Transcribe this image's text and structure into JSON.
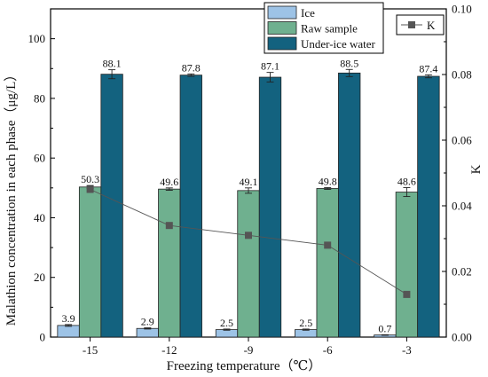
{
  "chart_data": {
    "type": "bar",
    "xlabel": "Freezing temperature（℃）",
    "ylabel": "Malathion concentration in each phase（μg/L）",
    "y2label": "K",
    "categories": [
      "-15",
      "-12",
      "-9",
      "-6",
      "-3"
    ],
    "ylim": [
      0,
      110
    ],
    "yticks": [
      0,
      20,
      40,
      60,
      80,
      100
    ],
    "y2lim": [
      0,
      0.1
    ],
    "y2ticks": [
      "0.00",
      "0.02",
      "0.04",
      "0.06",
      "0.08",
      "0.10"
    ],
    "series": [
      {
        "name": "Ice",
        "color": "#9dc3e6",
        "values": [
          3.9,
          2.9,
          2.5,
          2.5,
          0.7
        ],
        "errors": [
          0.3,
          0.2,
          0.2,
          0.2,
          0.1
        ],
        "labels": [
          "3.9",
          "2.9",
          "2.5",
          "2.5",
          "0.7"
        ]
      },
      {
        "name": "Raw sample",
        "color": "#6fb08f",
        "values": [
          50.3,
          49.6,
          49.1,
          49.8,
          48.6
        ],
        "errors": [
          0.5,
          0.4,
          0.9,
          0.3,
          1.5
        ],
        "labels": [
          "50.3",
          "49.6",
          "49.1",
          "49.8",
          "48.6"
        ]
      },
      {
        "name": "Under-ice water",
        "color": "#13627f",
        "values": [
          88.1,
          87.8,
          87.1,
          88.5,
          87.4
        ],
        "errors": [
          1.5,
          0.4,
          1.6,
          1.2,
          0.5
        ],
        "labels": [
          "88.1",
          "87.8",
          "87.1",
          "88.5",
          "87.4"
        ]
      }
    ],
    "line_series": {
      "name": "K",
      "axis": "right",
      "color": "#555555",
      "values": [
        0.045,
        0.034,
        0.031,
        0.028,
        0.013
      ]
    },
    "legend_main_position": "top-right",
    "legend_line_position": "top-right",
    "grid": false
  }
}
